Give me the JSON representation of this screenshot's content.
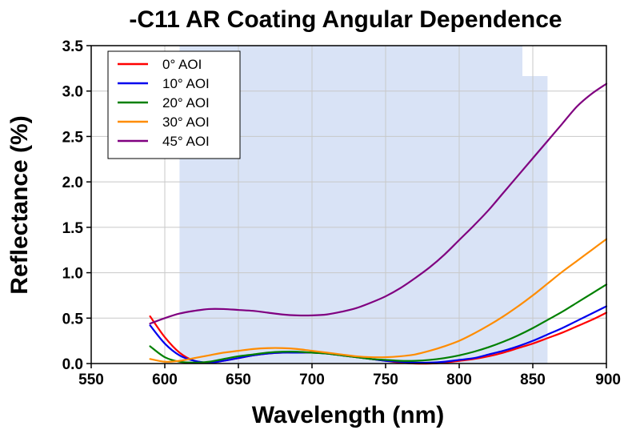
{
  "chart_data": {
    "type": "line",
    "title": "-C11 AR Coating Angular Dependence",
    "xlabel": "Wavelength (nm)",
    "ylabel": "Reflectance (%)",
    "xlim": [
      550,
      900
    ],
    "ylim": [
      0,
      3.5
    ],
    "xticks": [
      "550",
      "600",
      "650",
      "700",
      "750",
      "800",
      "850",
      "900"
    ],
    "yticks": [
      "0.0",
      "0.5",
      "1.0",
      "1.5",
      "2.0",
      "2.5",
      "3.0",
      "3.5"
    ],
    "grid": true,
    "legend_position": "top-left",
    "highlight_band": [
      610,
      860
    ],
    "highlight_color": "#d9e3f6",
    "series": [
      {
        "name": "0° AOI",
        "color": "#ff0000",
        "x": [
          590,
          600,
          610,
          620,
          630,
          640,
          650,
          660,
          670,
          680,
          690,
          700,
          710,
          720,
          730,
          740,
          750,
          760,
          770,
          780,
          790,
          800,
          810,
          820,
          830,
          840,
          850,
          860,
          870,
          880,
          890,
          900
        ],
        "y": [
          0.52,
          0.29,
          0.12,
          0.03,
          0.01,
          0.03,
          0.06,
          0.09,
          0.11,
          0.12,
          0.12,
          0.12,
          0.11,
          0.09,
          0.07,
          0.05,
          0.03,
          0.01,
          0.0,
          0.0,
          0.01,
          0.03,
          0.05,
          0.08,
          0.12,
          0.17,
          0.22,
          0.28,
          0.34,
          0.41,
          0.48,
          0.56
        ]
      },
      {
        "name": "10° AOI",
        "color": "#0000ee",
        "x": [
          590,
          600,
          610,
          620,
          630,
          640,
          650,
          660,
          670,
          680,
          690,
          700,
          710,
          720,
          730,
          740,
          750,
          760,
          770,
          780,
          790,
          800,
          810,
          820,
          830,
          840,
          850,
          860,
          870,
          880,
          890,
          900
        ],
        "y": [
          0.42,
          0.22,
          0.09,
          0.03,
          0.01,
          0.03,
          0.06,
          0.09,
          0.11,
          0.12,
          0.12,
          0.12,
          0.11,
          0.09,
          0.07,
          0.05,
          0.03,
          0.02,
          0.01,
          0.01,
          0.02,
          0.04,
          0.06,
          0.1,
          0.14,
          0.19,
          0.25,
          0.32,
          0.39,
          0.47,
          0.55,
          0.63
        ]
      },
      {
        "name": "20° AOI",
        "color": "#008000",
        "x": [
          590,
          600,
          610,
          620,
          630,
          640,
          650,
          660,
          670,
          680,
          690,
          700,
          710,
          720,
          730,
          740,
          750,
          760,
          770,
          780,
          790,
          800,
          810,
          820,
          830,
          840,
          850,
          860,
          870,
          880,
          890,
          900
        ],
        "y": [
          0.19,
          0.07,
          0.02,
          0.01,
          0.02,
          0.05,
          0.08,
          0.1,
          0.12,
          0.13,
          0.13,
          0.12,
          0.11,
          0.09,
          0.07,
          0.05,
          0.04,
          0.03,
          0.03,
          0.04,
          0.06,
          0.09,
          0.13,
          0.18,
          0.24,
          0.31,
          0.39,
          0.48,
          0.57,
          0.67,
          0.77,
          0.87
        ]
      },
      {
        "name": "30° AOI",
        "color": "#ff8c00",
        "x": [
          590,
          600,
          610,
          620,
          630,
          640,
          650,
          660,
          670,
          680,
          690,
          700,
          710,
          720,
          730,
          740,
          750,
          760,
          770,
          780,
          790,
          800,
          810,
          820,
          830,
          840,
          850,
          860,
          870,
          880,
          890,
          900
        ],
        "y": [
          0.05,
          0.02,
          0.03,
          0.06,
          0.09,
          0.12,
          0.14,
          0.16,
          0.17,
          0.17,
          0.16,
          0.14,
          0.12,
          0.1,
          0.08,
          0.07,
          0.07,
          0.08,
          0.1,
          0.14,
          0.19,
          0.25,
          0.33,
          0.42,
          0.52,
          0.63,
          0.75,
          0.88,
          1.01,
          1.13,
          1.25,
          1.37
        ]
      },
      {
        "name": "45° AOI",
        "color": "#800080",
        "x": [
          590,
          600,
          610,
          620,
          630,
          640,
          650,
          660,
          670,
          680,
          690,
          700,
          710,
          720,
          730,
          740,
          750,
          760,
          770,
          780,
          790,
          800,
          810,
          820,
          830,
          840,
          850,
          860,
          870,
          880,
          890,
          900
        ],
        "y": [
          0.44,
          0.5,
          0.55,
          0.58,
          0.6,
          0.6,
          0.59,
          0.58,
          0.56,
          0.54,
          0.53,
          0.53,
          0.54,
          0.57,
          0.61,
          0.67,
          0.74,
          0.83,
          0.94,
          1.06,
          1.2,
          1.36,
          1.52,
          1.69,
          1.88,
          2.07,
          2.26,
          2.45,
          2.64,
          2.83,
          2.97,
          3.08
        ]
      }
    ]
  }
}
